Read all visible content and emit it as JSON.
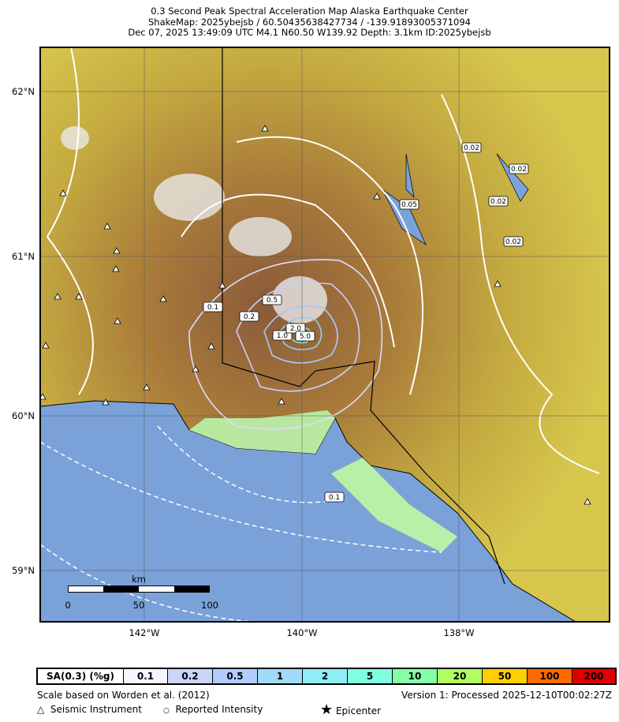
{
  "title": {
    "line1": "0.3 Second Peak Spectral Acceleration Map Alaska Earthquake Center",
    "line2": "ShakeMap: 2025ybejsb / 60.50435638427734 / -139.91893005371094",
    "line3": "Dec 07, 2025 13:49:09 UTC M4.1 N60.50 W139.92 Depth: 3.1km ID:2025ybejsb"
  },
  "map": {
    "lat_labels": [
      "62°N",
      "61°N",
      "60°N",
      "59°N"
    ],
    "lon_labels": [
      "142°W",
      "140°W",
      "138°W"
    ],
    "contour_labels": [
      "0.02",
      "0.02",
      "0.02",
      "0.02",
      "0.05",
      "0.1",
      "0.1",
      "0.2",
      "0.5",
      "1.0",
      "2.0",
      "5.0"
    ],
    "scalebar": {
      "unit": "km",
      "ticks": [
        "0",
        "50",
        "100"
      ]
    },
    "colors": {
      "ocean": "#7aa2d9",
      "land_low": "#9be39b",
      "land_mid": "#d4c24a",
      "land_high": "#9a6038",
      "snow": "#ffffff"
    }
  },
  "legend": {
    "label": "SA(0.3) (%g)",
    "bins": [
      {
        "v": "0.1",
        "c": "#f5f5ff"
      },
      {
        "v": "0.2",
        "c": "#ccd5f8"
      },
      {
        "v": "0.5",
        "c": "#b2ccff"
      },
      {
        "v": "1",
        "c": "#a1dbf9"
      },
      {
        "v": "2",
        "c": "#8fedf7"
      },
      {
        "v": "5",
        "c": "#80ffe0"
      },
      {
        "v": "10",
        "c": "#85ffa6"
      },
      {
        "v": "20",
        "c": "#b0ff60"
      },
      {
        "v": "50",
        "c": "#ffcf00"
      },
      {
        "v": "100",
        "c": "#ff6a00"
      },
      {
        "v": "200",
        "c": "#e00000"
      }
    ]
  },
  "footer": {
    "scale_note": "Scale based on Worden et al. (2012)",
    "version": "Version 1: Processed 2025-12-10T00:02:27Z",
    "seismic": "Seismic Instrument",
    "reported": "Reported Intensity",
    "epicenter": "Epicenter"
  }
}
